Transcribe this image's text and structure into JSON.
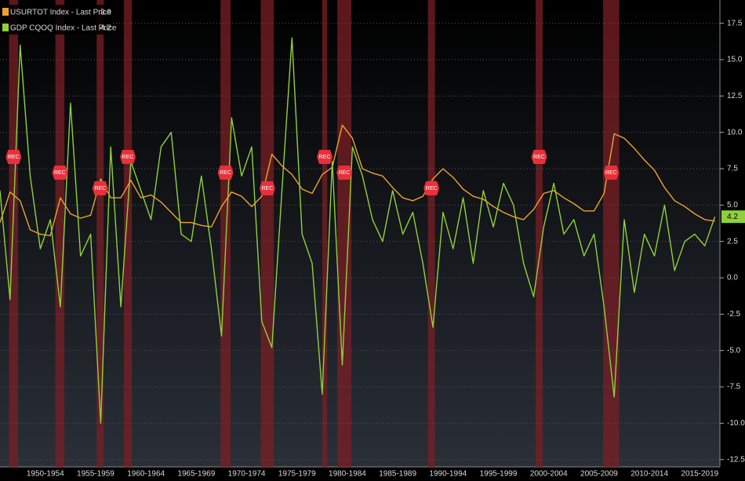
{
  "chart_data": {
    "type": "line",
    "legend": [
      {
        "label": "USURTOT Index - Last Price"
      },
      {
        "label": "GDP CQOQ Index - Last Price"
      }
    ],
    "recession_label": "REC",
    "recessions": [
      [
        1948.9,
        1949.8
      ],
      [
        1953.5,
        1954.4
      ],
      [
        1957.6,
        1958.3
      ],
      [
        1960.3,
        1961.1
      ],
      [
        1969.9,
        1970.9
      ],
      [
        1973.9,
        1975.2
      ],
      [
        1980.0,
        1980.5
      ],
      [
        1981.5,
        1982.9
      ],
      [
        1990.5,
        1991.2
      ],
      [
        2001.2,
        2001.9
      ],
      [
        2007.9,
        2009.5
      ]
    ],
    "xlim": [
      1948,
      2019.5
    ],
    "xticks": [
      {
        "value": 1952.5,
        "label": "1950-1954"
      },
      {
        "value": 1957.5,
        "label": "1955-1959"
      },
      {
        "value": 1962.5,
        "label": "1960-1964"
      },
      {
        "value": 1967.5,
        "label": "1965-1969"
      },
      {
        "value": 1972.5,
        "label": "1970-1974"
      },
      {
        "value": 1977.5,
        "label": "1975-1979"
      },
      {
        "value": 1982.5,
        "label": "1980-1984"
      },
      {
        "value": 1987.5,
        "label": "1985-1989"
      },
      {
        "value": 1992.5,
        "label": "1990-1994"
      },
      {
        "value": 1997.5,
        "label": "1995-1999"
      },
      {
        "value": 2002.5,
        "label": "2000-2004"
      },
      {
        "value": 2007.5,
        "label": "2005-2009"
      },
      {
        "value": 2012.5,
        "label": "2010-2014"
      },
      {
        "value": 2017.5,
        "label": "2015-2019"
      }
    ],
    "ylim": [
      -13,
      19.1
    ],
    "yticks": [
      17.5,
      {
        "value": 15,
        "label": "15.0"
      },
      12.5,
      {
        "value": 10,
        "label": "10.0"
      },
      7.5,
      {
        "value": 5,
        "label": "5.0"
      },
      2.5,
      {
        "value": 0,
        "label": "0.0"
      },
      -2.5,
      {
        "value": -5,
        "label": "-5.0"
      },
      -7.5,
      {
        "value": -10,
        "label": "-10.0"
      },
      -12.5
    ],
    "grid": true,
    "x": [
      1948,
      1949,
      1950,
      1951,
      1952,
      1953,
      1954,
      1955,
      1956,
      1957,
      1958,
      1959,
      1960,
      1961,
      1962,
      1963,
      1964,
      1965,
      1966,
      1967,
      1968,
      1969,
      1970,
      1971,
      1972,
      1973,
      1974,
      1975,
      1976,
      1977,
      1978,
      1979,
      1980,
      1981,
      1982,
      1983,
      1984,
      1985,
      1986,
      1987,
      1988,
      1989,
      1990,
      1991,
      1992,
      1993,
      1994,
      1995,
      1996,
      1997,
      1998,
      1999,
      2000,
      2001,
      2002,
      2003,
      2004,
      2005,
      2006,
      2007,
      2008,
      2009,
      2010,
      2011,
      2012,
      2013,
      2014,
      2015,
      2016,
      2017,
      2018,
      2019
    ],
    "series": [
      {
        "name": "USURTOT Index",
        "color": "#f0a030",
        "values": [
          3.8,
          5.9,
          5.3,
          3.3,
          3.0,
          2.9,
          5.5,
          4.4,
          4.1,
          4.3,
          6.8,
          5.5,
          5.5,
          6.7,
          5.5,
          5.7,
          5.2,
          4.5,
          3.8,
          3.8,
          3.6,
          3.5,
          4.9,
          5.9,
          5.6,
          4.9,
          5.6,
          8.5,
          7.7,
          7.1,
          6.1,
          5.8,
          7.1,
          7.6,
          10.5,
          9.6,
          7.5,
          7.2,
          7.0,
          6.2,
          5.5,
          5.3,
          5.6,
          6.8,
          7.5,
          6.9,
          6.1,
          5.6,
          5.4,
          4.9,
          4.5,
          4.2,
          4.0,
          4.7,
          5.8,
          6.0,
          5.5,
          5.1,
          4.6,
          4.6,
          5.8,
          9.9,
          9.6,
          8.9,
          8.1,
          7.4,
          6.2,
          5.3,
          4.9,
          4.4,
          4.0,
          3.9
        ]
      },
      {
        "name": "GDP CQOQ Index",
        "color": "#8fd13a",
        "values": [
          6,
          -1.5,
          16,
          7,
          2,
          4,
          -2,
          12,
          1.5,
          3,
          -10,
          9,
          -2,
          8,
          6,
          4,
          9,
          10,
          3,
          2.5,
          7,
          2,
          -4,
          11,
          7,
          9,
          -3,
          -4.8,
          6,
          16.5,
          3,
          1,
          -8,
          8,
          -6,
          9,
          7,
          4,
          2.5,
          6,
          3,
          4.5,
          1,
          -3.4,
          4.5,
          2,
          5.5,
          1,
          6,
          3.5,
          6.5,
          5,
          1,
          -1.3,
          3.5,
          6.5,
          3,
          4,
          1.5,
          3,
          -2,
          -8.2,
          4,
          -1,
          3,
          1.5,
          5,
          0.5,
          2.5,
          3,
          2.2,
          4.2
        ]
      }
    ]
  }
}
